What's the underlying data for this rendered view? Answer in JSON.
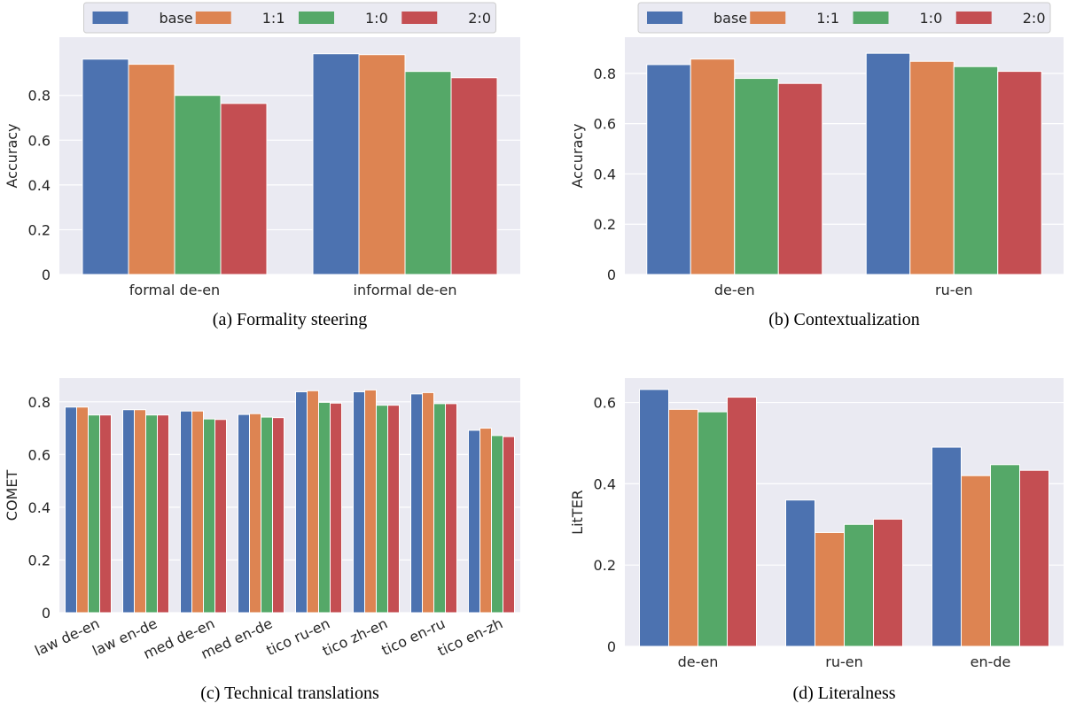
{
  "chart_data": [
    {
      "type": "bar",
      "caption": "(a) Formality steering",
      "y_label": "Accuracy",
      "legend": true,
      "categories": [
        "formal de-en",
        "informal de-en"
      ],
      "series": [
        {
          "name": "base",
          "color": "#4c72b0",
          "values": [
            0.962,
            0.986
          ]
        },
        {
          "name": "1:1",
          "color": "#dd8452",
          "values": [
            0.939,
            0.982
          ]
        },
        {
          "name": "1:0",
          "color": "#55a868",
          "values": [
            0.8,
            0.907
          ]
        },
        {
          "name": "2:0",
          "color": "#c44e52",
          "values": [
            0.764,
            0.879
          ]
        }
      ],
      "ylim": [
        0,
        1.06
      ],
      "yticks": [
        0.0,
        0.2,
        0.4,
        0.6,
        0.8
      ],
      "grid": true
    },
    {
      "type": "bar",
      "caption": "(b) Contextualization",
      "y_label": "Accuracy",
      "legend": true,
      "categories": [
        "de-en",
        "ru-en"
      ],
      "series": [
        {
          "name": "base",
          "color": "#4c72b0",
          "values": [
            0.835,
            0.88
          ]
        },
        {
          "name": "1:1",
          "color": "#dd8452",
          "values": [
            0.857,
            0.848
          ]
        },
        {
          "name": "1:0",
          "color": "#55a868",
          "values": [
            0.78,
            0.827
          ]
        },
        {
          "name": "2:0",
          "color": "#c44e52",
          "values": [
            0.76,
            0.808
          ]
        }
      ],
      "ylim": [
        0,
        0.944
      ],
      "yticks": [
        0.0,
        0.2,
        0.4,
        0.6,
        0.8
      ],
      "grid": true
    },
    {
      "type": "bar",
      "caption": "(c) Technical translations",
      "y_label": "COMET",
      "legend": false,
      "rotate_labels": true,
      "categories": [
        "law de-en",
        "law en-de",
        "med de-en",
        "med en-de",
        "tico ru-en",
        "tico zh-en",
        "tico en-ru",
        "tico en-zh"
      ],
      "series": [
        {
          "name": "base",
          "color": "#4c72b0",
          "values": [
            0.78,
            0.77,
            0.765,
            0.752,
            0.838,
            0.838,
            0.83,
            0.692
          ]
        },
        {
          "name": "1:1",
          "color": "#dd8452",
          "values": [
            0.78,
            0.77,
            0.765,
            0.755,
            0.842,
            0.845,
            0.835,
            0.7
          ]
        },
        {
          "name": "1:0",
          "color": "#55a868",
          "values": [
            0.75,
            0.75,
            0.735,
            0.742,
            0.798,
            0.787,
            0.793,
            0.672
          ]
        },
        {
          "name": "2:0",
          "color": "#c44e52",
          "values": [
            0.75,
            0.75,
            0.733,
            0.74,
            0.795,
            0.787,
            0.793,
            0.668
          ]
        }
      ],
      "ylim": [
        0,
        0.89
      ],
      "yticks": [
        0.0,
        0.2,
        0.4,
        0.6,
        0.8
      ],
      "grid": true
    },
    {
      "type": "bar",
      "caption": "(d) Literalness",
      "y_label": "LitTER",
      "legend": false,
      "categories": [
        "de-en",
        "ru-en",
        "en-de"
      ],
      "series": [
        {
          "name": "base",
          "color": "#4c72b0",
          "values": [
            0.632,
            0.36,
            0.49
          ]
        },
        {
          "name": "1:1",
          "color": "#dd8452",
          "values": [
            0.583,
            0.28,
            0.42
          ]
        },
        {
          "name": "1:0",
          "color": "#55a868",
          "values": [
            0.577,
            0.3,
            0.447
          ]
        },
        {
          "name": "2:0",
          "color": "#c44e52",
          "values": [
            0.613,
            0.313,
            0.433
          ]
        }
      ],
      "ylim": [
        0,
        0.66
      ],
      "yticks": [
        0.0,
        0.2,
        0.4,
        0.6
      ],
      "grid": true
    }
  ]
}
